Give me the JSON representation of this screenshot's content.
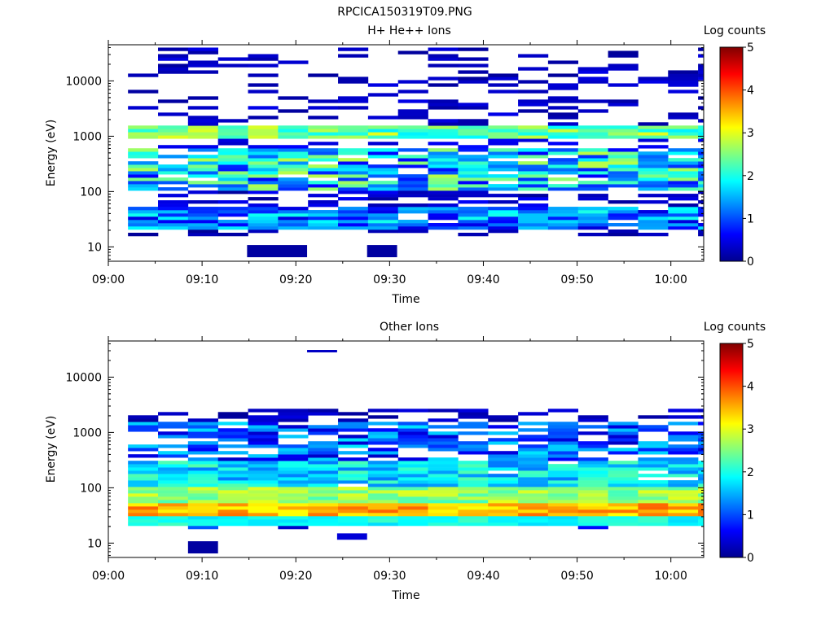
{
  "figure_title": "RPCICA150319T09.PNG",
  "colors": {
    "colormap": [
      "#00008f",
      "#0000ff",
      "#0080ff",
      "#00ffff",
      "#80ff80",
      "#ffff00",
      "#ff8000",
      "#ff0000",
      "#800000"
    ]
  },
  "chart_data": [
    {
      "type": "heatmap",
      "title": "H+ He++ Ions",
      "xlabel": "Time",
      "ylabel": "Energy (eV)",
      "x_ticks": [
        "09:00",
        "09:10",
        "09:20",
        "09:30",
        "09:40",
        "09:50",
        "10:00"
      ],
      "x_tick_minutes": [
        0,
        10,
        20,
        30,
        40,
        50,
        60
      ],
      "xlim_minutes": [
        0,
        63.5
      ],
      "y_scale": "log",
      "ylim": [
        5.5,
        45000
      ],
      "y_ticks": [
        10,
        100,
        1000,
        10000
      ],
      "y_tick_labels": [
        "10",
        "100",
        "1000",
        "10000"
      ],
      "colorbar": {
        "label": "Log counts",
        "range": [
          0,
          5
        ],
        "ticks": [
          "0",
          "1",
          "2",
          "3",
          "4",
          "5"
        ]
      },
      "n_time_bins": 20,
      "time_bin_start_minutes": 2.1,
      "time_bin_width_minutes": 3.2,
      "n_energy_bins": 60,
      "energy_bin_edges_range_eV": [
        12,
        40000
      ],
      "layers": [
        {
          "emin": 900,
          "emax": 1500,
          "cmin": 1.8,
          "cmax": 3.0,
          "density": 1.0
        },
        {
          "emin": 100,
          "emax": 600,
          "cmin": 0.6,
          "cmax": 2.8,
          "density": 0.85
        },
        {
          "emin": 22,
          "emax": 50,
          "cmin": 0.4,
          "cmax": 2.0,
          "density": 0.9
        },
        {
          "emin": 1500,
          "emax": 42000,
          "cmin": 0.05,
          "cmax": 0.5,
          "density": 0.3
        },
        {
          "emin": 600,
          "emax": 900,
          "cmin": 0.1,
          "cmax": 0.7,
          "density": 0.35
        },
        {
          "emin": 50,
          "emax": 100,
          "cmin": 0.05,
          "cmax": 0.6,
          "density": 0.4
        },
        {
          "emin": 16,
          "emax": 22,
          "cmin": 0.05,
          "cmax": 0.3,
          "density": 0.35
        }
      ],
      "extra_cells": [
        {
          "t0": 14.8,
          "t1": 21.2,
          "emin": 6.5,
          "emax": 10.8,
          "c": 0.1
        },
        {
          "t0": 27.6,
          "t1": 30.8,
          "emin": 6.5,
          "emax": 10.8,
          "c": 0.1
        }
      ]
    },
    {
      "type": "heatmap",
      "title": "Other Ions",
      "xlabel": "Time",
      "ylabel": "Energy (eV)",
      "x_ticks": [
        "09:00",
        "09:10",
        "09:20",
        "09:30",
        "09:40",
        "09:50",
        "10:00"
      ],
      "x_tick_minutes": [
        0,
        10,
        20,
        30,
        40,
        50,
        60
      ],
      "xlim_minutes": [
        0,
        63.5
      ],
      "y_scale": "log",
      "ylim": [
        5.5,
        45000
      ],
      "y_ticks": [
        10,
        100,
        1000,
        10000
      ],
      "y_tick_labels": [
        "10",
        "100",
        "1000",
        "10000"
      ],
      "colorbar": {
        "label": "Log counts",
        "range": [
          0,
          5
        ],
        "ticks": [
          "0",
          "1",
          "2",
          "3",
          "4",
          "5"
        ]
      },
      "n_time_bins": 20,
      "time_bin_start_minutes": 2.1,
      "time_bin_width_minutes": 3.2,
      "n_energy_bins": 60,
      "energy_bin_edges_range_eV": [
        12,
        40000
      ],
      "layers": [
        {
          "emin": 30,
          "emax": 50,
          "cmin": 3.1,
          "cmax": 3.9,
          "density": 1.0
        },
        {
          "emin": 22,
          "emax": 30,
          "cmin": 1.7,
          "cmax": 2.2,
          "density": 1.0
        },
        {
          "emin": 50,
          "emax": 100,
          "cmin": 2.2,
          "cmax": 3.0,
          "density": 1.0
        },
        {
          "emin": 100,
          "emax": 300,
          "cmin": 1.2,
          "cmax": 2.3,
          "density": 0.95
        },
        {
          "emin": 300,
          "emax": 1500,
          "cmin": 0.3,
          "cmax": 1.8,
          "density": 0.75
        },
        {
          "emin": 1500,
          "emax": 2700,
          "cmin": 0.05,
          "cmax": 0.5,
          "density": 0.45
        },
        {
          "emin": 17,
          "emax": 22,
          "cmin": 0.3,
          "cmax": 1.2,
          "density": 0.3
        }
      ],
      "extra_cells": [
        {
          "t0": 8.5,
          "t1": 11.7,
          "emin": 6.5,
          "emax": 10.8,
          "c": 0.1
        },
        {
          "t0": 24.4,
          "t1": 27.6,
          "emin": 11.5,
          "emax": 15,
          "c": 0.4
        },
        {
          "t0": 21.2,
          "t1": 24.4,
          "emin": 28000,
          "emax": 31000,
          "c": 0.3
        }
      ]
    }
  ]
}
